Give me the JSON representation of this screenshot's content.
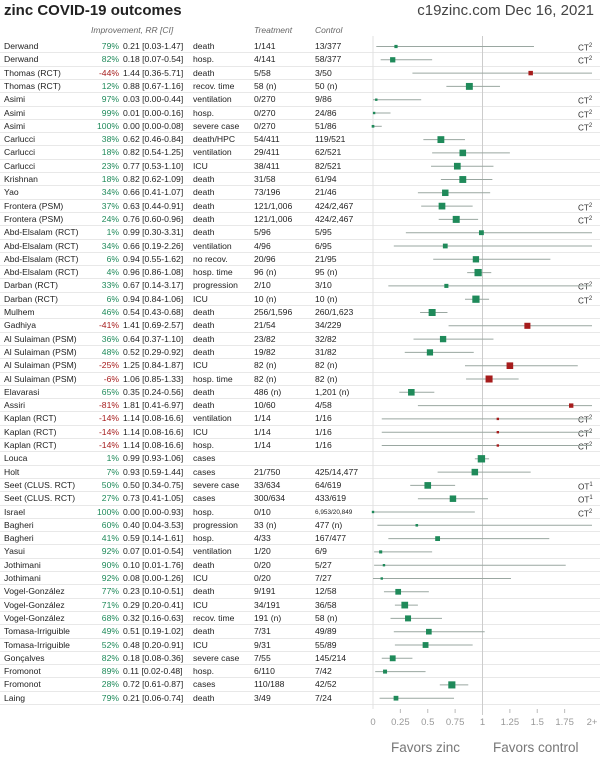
{
  "header": {
    "title": "zinc COVID-19 outcomes",
    "site_date": "c19zinc.com Dec 16, 2021",
    "col_improvement": "Improvement, RR [CI]",
    "col_treatment": "Treatment",
    "col_control": "Control"
  },
  "footer": {
    "favors_treatment": "Favors zinc",
    "favors_control": "Favors control"
  },
  "colors": {
    "positive": "#1f8a5a",
    "negative": "#a61c1c",
    "ci_line": "#9aa7a1",
    "axis": "#cccccc"
  },
  "chart_data": {
    "type": "forest",
    "title": "zinc COVID-19 outcomes",
    "xlabel_left": "Favors zinc",
    "xlabel_right": "Favors control",
    "x_ticks": [
      "0",
      "0.25",
      "0.5",
      "0.75",
      "1",
      "1.25",
      "1.5",
      "1.75",
      "2+"
    ],
    "x_range": [
      0,
      2
    ],
    "rows": [
      {
        "study": "Derwand",
        "improvement": "79%",
        "rr": "0.21 [0.03-1.47]",
        "rr_val": 0.21,
        "lo": 0.03,
        "hi": 1.47,
        "outcome": "death",
        "treatment": "1/141",
        "control": "13/377",
        "note": "CT",
        "note_sup": "2"
      },
      {
        "study": "Derwand",
        "improvement": "82%",
        "rr": "0.18 [0.07-0.54]",
        "rr_val": 0.18,
        "lo": 0.07,
        "hi": 0.54,
        "outcome": "hosp.",
        "treatment": "4/141",
        "control": "58/377",
        "note": "CT",
        "note_sup": "2"
      },
      {
        "study": "Thomas (RCT)",
        "improvement": "-44%",
        "rr": "1.44 [0.36-5.71]",
        "rr_val": 1.44,
        "lo": 0.36,
        "hi": 5.71,
        "outcome": "death",
        "treatment": "5/58",
        "control": "3/50",
        "note": "",
        "note_sup": ""
      },
      {
        "study": "Thomas (RCT)",
        "improvement": "12%",
        "rr": "0.88 [0.67-1.16]",
        "rr_val": 0.88,
        "lo": 0.67,
        "hi": 1.16,
        "outcome": "recov. time",
        "treatment": "58 (n)",
        "control": "50 (n)",
        "note": "",
        "note_sup": ""
      },
      {
        "study": "Asimi",
        "improvement": "97%",
        "rr": "0.03 [0.00-0.44]",
        "rr_val": 0.03,
        "lo": 0.0,
        "hi": 0.44,
        "outcome": "ventilation",
        "treatment": "0/270",
        "control": "9/86",
        "note": "CT",
        "note_sup": "2"
      },
      {
        "study": "Asimi",
        "improvement": "99%",
        "rr": "0.01 [0.00-0.16]",
        "rr_val": 0.01,
        "lo": 0.0,
        "hi": 0.16,
        "outcome": "hosp.",
        "treatment": "0/270",
        "control": "24/86",
        "note": "CT",
        "note_sup": "2"
      },
      {
        "study": "Asimi",
        "improvement": "100%",
        "rr": "0.00 [0.00-0.08]",
        "rr_val": 0.0,
        "lo": 0.0,
        "hi": 0.08,
        "outcome": "severe case",
        "treatment": "0/270",
        "control": "51/86",
        "note": "CT",
        "note_sup": "2"
      },
      {
        "study": "Carlucci",
        "improvement": "38%",
        "rr": "0.62 [0.46-0.84]",
        "rr_val": 0.62,
        "lo": 0.46,
        "hi": 0.84,
        "outcome": "death/HPC",
        "treatment": "54/411",
        "control": "119/521",
        "note": "",
        "note_sup": ""
      },
      {
        "study": "Carlucci",
        "improvement": "18%",
        "rr": "0.82 [0.54-1.25]",
        "rr_val": 0.82,
        "lo": 0.54,
        "hi": 1.25,
        "outcome": "ventilation",
        "treatment": "29/411",
        "control": "62/521",
        "note": "",
        "note_sup": ""
      },
      {
        "study": "Carlucci",
        "improvement": "23%",
        "rr": "0.77 [0.53-1.10]",
        "rr_val": 0.77,
        "lo": 0.53,
        "hi": 1.1,
        "outcome": "ICU",
        "treatment": "38/411",
        "control": "82/521",
        "note": "",
        "note_sup": ""
      },
      {
        "study": "Krishnan",
        "improvement": "18%",
        "rr": "0.82 [0.62-1.09]",
        "rr_val": 0.82,
        "lo": 0.62,
        "hi": 1.09,
        "outcome": "death",
        "treatment": "31/58",
        "control": "61/94",
        "note": "",
        "note_sup": ""
      },
      {
        "study": "Yao",
        "improvement": "34%",
        "rr": "0.66 [0.41-1.07]",
        "rr_val": 0.66,
        "lo": 0.41,
        "hi": 1.07,
        "outcome": "death",
        "treatment": "73/196",
        "control": "21/46",
        "note": "",
        "note_sup": ""
      },
      {
        "study": "Frontera (PSM)",
        "improvement": "37%",
        "rr": "0.63 [0.44-0.91]",
        "rr_val": 0.63,
        "lo": 0.44,
        "hi": 0.91,
        "outcome": "death",
        "treatment": "121/1,006",
        "control": "424/2,467",
        "note": "CT",
        "note_sup": "2"
      },
      {
        "study": "Frontera (PSM)",
        "improvement": "24%",
        "rr": "0.76 [0.60-0.96]",
        "rr_val": 0.76,
        "lo": 0.6,
        "hi": 0.96,
        "outcome": "death",
        "treatment": "121/1,006",
        "control": "424/2,467",
        "note": "CT",
        "note_sup": "2"
      },
      {
        "study": "Abd-Elsalam (RCT)",
        "improvement": "1%",
        "rr": "0.99 [0.30-3.31]",
        "rr_val": 0.99,
        "lo": 0.3,
        "hi": 3.31,
        "outcome": "death",
        "treatment": "5/96",
        "control": "5/95",
        "note": "",
        "note_sup": ""
      },
      {
        "study": "Abd-Elsalam (RCT)",
        "improvement": "34%",
        "rr": "0.66 [0.19-2.26]",
        "rr_val": 0.66,
        "lo": 0.19,
        "hi": 2.26,
        "outcome": "ventilation",
        "treatment": "4/96",
        "control": "6/95",
        "note": "",
        "note_sup": ""
      },
      {
        "study": "Abd-Elsalam (RCT)",
        "improvement": "6%",
        "rr": "0.94 [0.55-1.62]",
        "rr_val": 0.94,
        "lo": 0.55,
        "hi": 1.62,
        "outcome": "no recov.",
        "treatment": "20/96",
        "control": "21/95",
        "note": "",
        "note_sup": ""
      },
      {
        "study": "Abd-Elsalam (RCT)",
        "improvement": "4%",
        "rr": "0.96 [0.86-1.08]",
        "rr_val": 0.96,
        "lo": 0.86,
        "hi": 1.08,
        "outcome": "hosp. time",
        "treatment": "96 (n)",
        "control": "95 (n)",
        "note": "",
        "note_sup": ""
      },
      {
        "study": "Darban (RCT)",
        "improvement": "33%",
        "rr": "0.67 [0.14-3.17]",
        "rr_val": 0.67,
        "lo": 0.14,
        "hi": 3.17,
        "outcome": "progression",
        "treatment": "2/10",
        "control": "3/10",
        "note": "CT",
        "note_sup": "2"
      },
      {
        "study": "Darban (RCT)",
        "improvement": "6%",
        "rr": "0.94 [0.84-1.06]",
        "rr_val": 0.94,
        "lo": 0.84,
        "hi": 1.06,
        "outcome": "ICU",
        "treatment": "10 (n)",
        "control": "10 (n)",
        "note": "CT",
        "note_sup": "2"
      },
      {
        "study": "Mulhem",
        "improvement": "46%",
        "rr": "0.54 [0.43-0.68]",
        "rr_val": 0.54,
        "lo": 0.43,
        "hi": 0.68,
        "outcome": "death",
        "treatment": "256/1,596",
        "control": "260/1,623",
        "note": "",
        "note_sup": ""
      },
      {
        "study": "Gadhiya",
        "improvement": "-41%",
        "rr": "1.41 [0.69-2.57]",
        "rr_val": 1.41,
        "lo": 0.69,
        "hi": 2.57,
        "outcome": "death",
        "treatment": "21/54",
        "control": "34/229",
        "note": "",
        "note_sup": ""
      },
      {
        "study": "Al Sulaiman (PSM)",
        "improvement": "36%",
        "rr": "0.64 [0.37-1.10]",
        "rr_val": 0.64,
        "lo": 0.37,
        "hi": 1.1,
        "outcome": "death",
        "treatment": "23/82",
        "control": "32/82",
        "note": "",
        "note_sup": ""
      },
      {
        "study": "Al Sulaiman (PSM)",
        "improvement": "48%",
        "rr": "0.52 [0.29-0.92]",
        "rr_val": 0.52,
        "lo": 0.29,
        "hi": 0.92,
        "outcome": "death",
        "treatment": "19/82",
        "control": "31/82",
        "note": "",
        "note_sup": ""
      },
      {
        "study": "Al Sulaiman (PSM)",
        "improvement": "-25%",
        "rr": "1.25 [0.84-1.87]",
        "rr_val": 1.25,
        "lo": 0.84,
        "hi": 1.87,
        "outcome": "ICU",
        "treatment": "82 (n)",
        "control": "82 (n)",
        "note": "",
        "note_sup": ""
      },
      {
        "study": "Al Sulaiman (PSM)",
        "improvement": "-6%",
        "rr": "1.06 [0.85-1.33]",
        "rr_val": 1.06,
        "lo": 0.85,
        "hi": 1.33,
        "outcome": "hosp. time",
        "treatment": "82 (n)",
        "control": "82 (n)",
        "note": "",
        "note_sup": ""
      },
      {
        "study": "Elavarasi",
        "improvement": "65%",
        "rr": "0.35 [0.24-0.56]",
        "rr_val": 0.35,
        "lo": 0.24,
        "hi": 0.56,
        "outcome": "death",
        "treatment": "486 (n)",
        "control": "1,201 (n)",
        "note": "",
        "note_sup": ""
      },
      {
        "study": "Assiri",
        "improvement": "-81%",
        "rr": "1.81 [0.41-6.97]",
        "rr_val": 1.81,
        "lo": 0.41,
        "hi": 6.97,
        "outcome": "death",
        "treatment": "10/60",
        "control": "4/58",
        "note": "",
        "note_sup": ""
      },
      {
        "study": "Kaplan (RCT)",
        "improvement": "-14%",
        "rr": "1.14 [0.08-16.6]",
        "rr_val": 1.14,
        "lo": 0.08,
        "hi": 16.6,
        "outcome": "ventilation",
        "treatment": "1/14",
        "control": "1/16",
        "note": "CT",
        "note_sup": "2"
      },
      {
        "study": "Kaplan (RCT)",
        "improvement": "-14%",
        "rr": "1.14 [0.08-16.6]",
        "rr_val": 1.14,
        "lo": 0.08,
        "hi": 16.6,
        "outcome": "ICU",
        "treatment": "1/14",
        "control": "1/16",
        "note": "CT",
        "note_sup": "2"
      },
      {
        "study": "Kaplan (RCT)",
        "improvement": "-14%",
        "rr": "1.14 [0.08-16.6]",
        "rr_val": 1.14,
        "lo": 0.08,
        "hi": 16.6,
        "outcome": "hosp.",
        "treatment": "1/14",
        "control": "1/16",
        "note": "CT",
        "note_sup": "2"
      },
      {
        "study": "Louca",
        "improvement": "1%",
        "rr": "0.99 [0.93-1.06]",
        "rr_val": 0.99,
        "lo": 0.93,
        "hi": 1.06,
        "outcome": "cases",
        "treatment": "",
        "control": "",
        "note": "",
        "note_sup": ""
      },
      {
        "study": "Holt",
        "improvement": "7%",
        "rr": "0.93 [0.59-1.44]",
        "rr_val": 0.93,
        "lo": 0.59,
        "hi": 1.44,
        "outcome": "cases",
        "treatment": "21/750",
        "control": "425/14,477",
        "note": "",
        "note_sup": ""
      },
      {
        "study": "Seet (CLUS. RCT)",
        "improvement": "50%",
        "rr": "0.50 [0.34-0.75]",
        "rr_val": 0.5,
        "lo": 0.34,
        "hi": 0.75,
        "outcome": "severe case",
        "treatment": "33/634",
        "control": "64/619",
        "note": "OT",
        "note_sup": "1"
      },
      {
        "study": "Seet (CLUS. RCT)",
        "improvement": "27%",
        "rr": "0.73 [0.41-1.05]",
        "rr_val": 0.73,
        "lo": 0.41,
        "hi": 1.05,
        "outcome": "cases",
        "treatment": "300/634",
        "control": "433/619",
        "note": "OT",
        "note_sup": "1"
      },
      {
        "study": "Israel",
        "improvement": "100%",
        "rr": "0.00 [0.00-0.93]",
        "rr_val": 0.0,
        "lo": 0.0,
        "hi": 0.93,
        "outcome": "hosp.",
        "treatment": "0/10",
        "control": "6,953/20,849",
        "note": "CT",
        "note_sup": "2"
      },
      {
        "study": "Bagheri",
        "improvement": "60%",
        "rr": "0.40 [0.04-3.53]",
        "rr_val": 0.4,
        "lo": 0.04,
        "hi": 3.53,
        "outcome": "progression",
        "treatment": "33 (n)",
        "control": "477 (n)",
        "note": "",
        "note_sup": ""
      },
      {
        "study": "Bagheri",
        "improvement": "41%",
        "rr": "0.59 [0.14-1.61]",
        "rr_val": 0.59,
        "lo": 0.14,
        "hi": 1.61,
        "outcome": "hosp.",
        "treatment": "4/33",
        "control": "167/477",
        "note": "",
        "note_sup": ""
      },
      {
        "study": "Yasui",
        "improvement": "92%",
        "rr": "0.07 [0.01-0.54]",
        "rr_val": 0.07,
        "lo": 0.01,
        "hi": 0.54,
        "outcome": "ventilation",
        "treatment": "1/20",
        "control": "6/9",
        "note": "",
        "note_sup": ""
      },
      {
        "study": "Jothimani",
        "improvement": "90%",
        "rr": "0.10 [0.01-1.76]",
        "rr_val": 0.1,
        "lo": 0.01,
        "hi": 1.76,
        "outcome": "death",
        "treatment": "0/20",
        "control": "5/27",
        "note": "",
        "note_sup": ""
      },
      {
        "study": "Jothimani",
        "improvement": "92%",
        "rr": "0.08 [0.00-1.26]",
        "rr_val": 0.08,
        "lo": 0.0,
        "hi": 1.26,
        "outcome": "ICU",
        "treatment": "0/20",
        "control": "7/27",
        "note": "",
        "note_sup": ""
      },
      {
        "study": "Vogel-González",
        "improvement": "77%",
        "rr": "0.23 [0.10-0.51]",
        "rr_val": 0.23,
        "lo": 0.1,
        "hi": 0.51,
        "outcome": "death",
        "treatment": "9/191",
        "control": "12/58",
        "note": "",
        "note_sup": ""
      },
      {
        "study": "Vogel-González",
        "improvement": "71%",
        "rr": "0.29 [0.20-0.41]",
        "rr_val": 0.29,
        "lo": 0.2,
        "hi": 0.41,
        "outcome": "ICU",
        "treatment": "34/191",
        "control": "36/58",
        "note": "",
        "note_sup": ""
      },
      {
        "study": "Vogel-González",
        "improvement": "68%",
        "rr": "0.32 [0.16-0.63]",
        "rr_val": 0.32,
        "lo": 0.16,
        "hi": 0.63,
        "outcome": "recov. time",
        "treatment": "191 (n)",
        "control": "58 (n)",
        "note": "",
        "note_sup": ""
      },
      {
        "study": "Tomasa-Irriguible",
        "improvement": "49%",
        "rr": "0.51 [0.19-1.02]",
        "rr_val": 0.51,
        "lo": 0.19,
        "hi": 1.02,
        "outcome": "death",
        "treatment": "7/31",
        "control": "49/89",
        "note": "",
        "note_sup": ""
      },
      {
        "study": "Tomasa-Irriguible",
        "improvement": "52%",
        "rr": "0.48 [0.20-0.91]",
        "rr_val": 0.48,
        "lo": 0.2,
        "hi": 0.91,
        "outcome": "ICU",
        "treatment": "9/31",
        "control": "55/89",
        "note": "",
        "note_sup": ""
      },
      {
        "study": "Gonçalves",
        "improvement": "82%",
        "rr": "0.18 [0.08-0.36]",
        "rr_val": 0.18,
        "lo": 0.08,
        "hi": 0.36,
        "outcome": "severe case",
        "treatment": "7/55",
        "control": "145/214",
        "note": "",
        "note_sup": ""
      },
      {
        "study": "Fromonot",
        "improvement": "89%",
        "rr": "0.11 [0.02-0.48]",
        "rr_val": 0.11,
        "lo": 0.02,
        "hi": 0.48,
        "outcome": "hosp.",
        "treatment": "6/110",
        "control": "7/42",
        "note": "",
        "note_sup": ""
      },
      {
        "study": "Fromonot",
        "improvement": "28%",
        "rr": "0.72 [0.61-0.87]",
        "rr_val": 0.72,
        "lo": 0.61,
        "hi": 0.87,
        "outcome": "cases",
        "treatment": "110/188",
        "control": "42/52",
        "note": "",
        "note_sup": ""
      },
      {
        "study": "Laing",
        "improvement": "79%",
        "rr": "0.21 [0.06-0.74]",
        "rr_val": 0.21,
        "lo": 0.06,
        "hi": 0.74,
        "outcome": "death",
        "treatment": "3/49",
        "control": "7/24",
        "note": "",
        "note_sup": ""
      }
    ]
  }
}
